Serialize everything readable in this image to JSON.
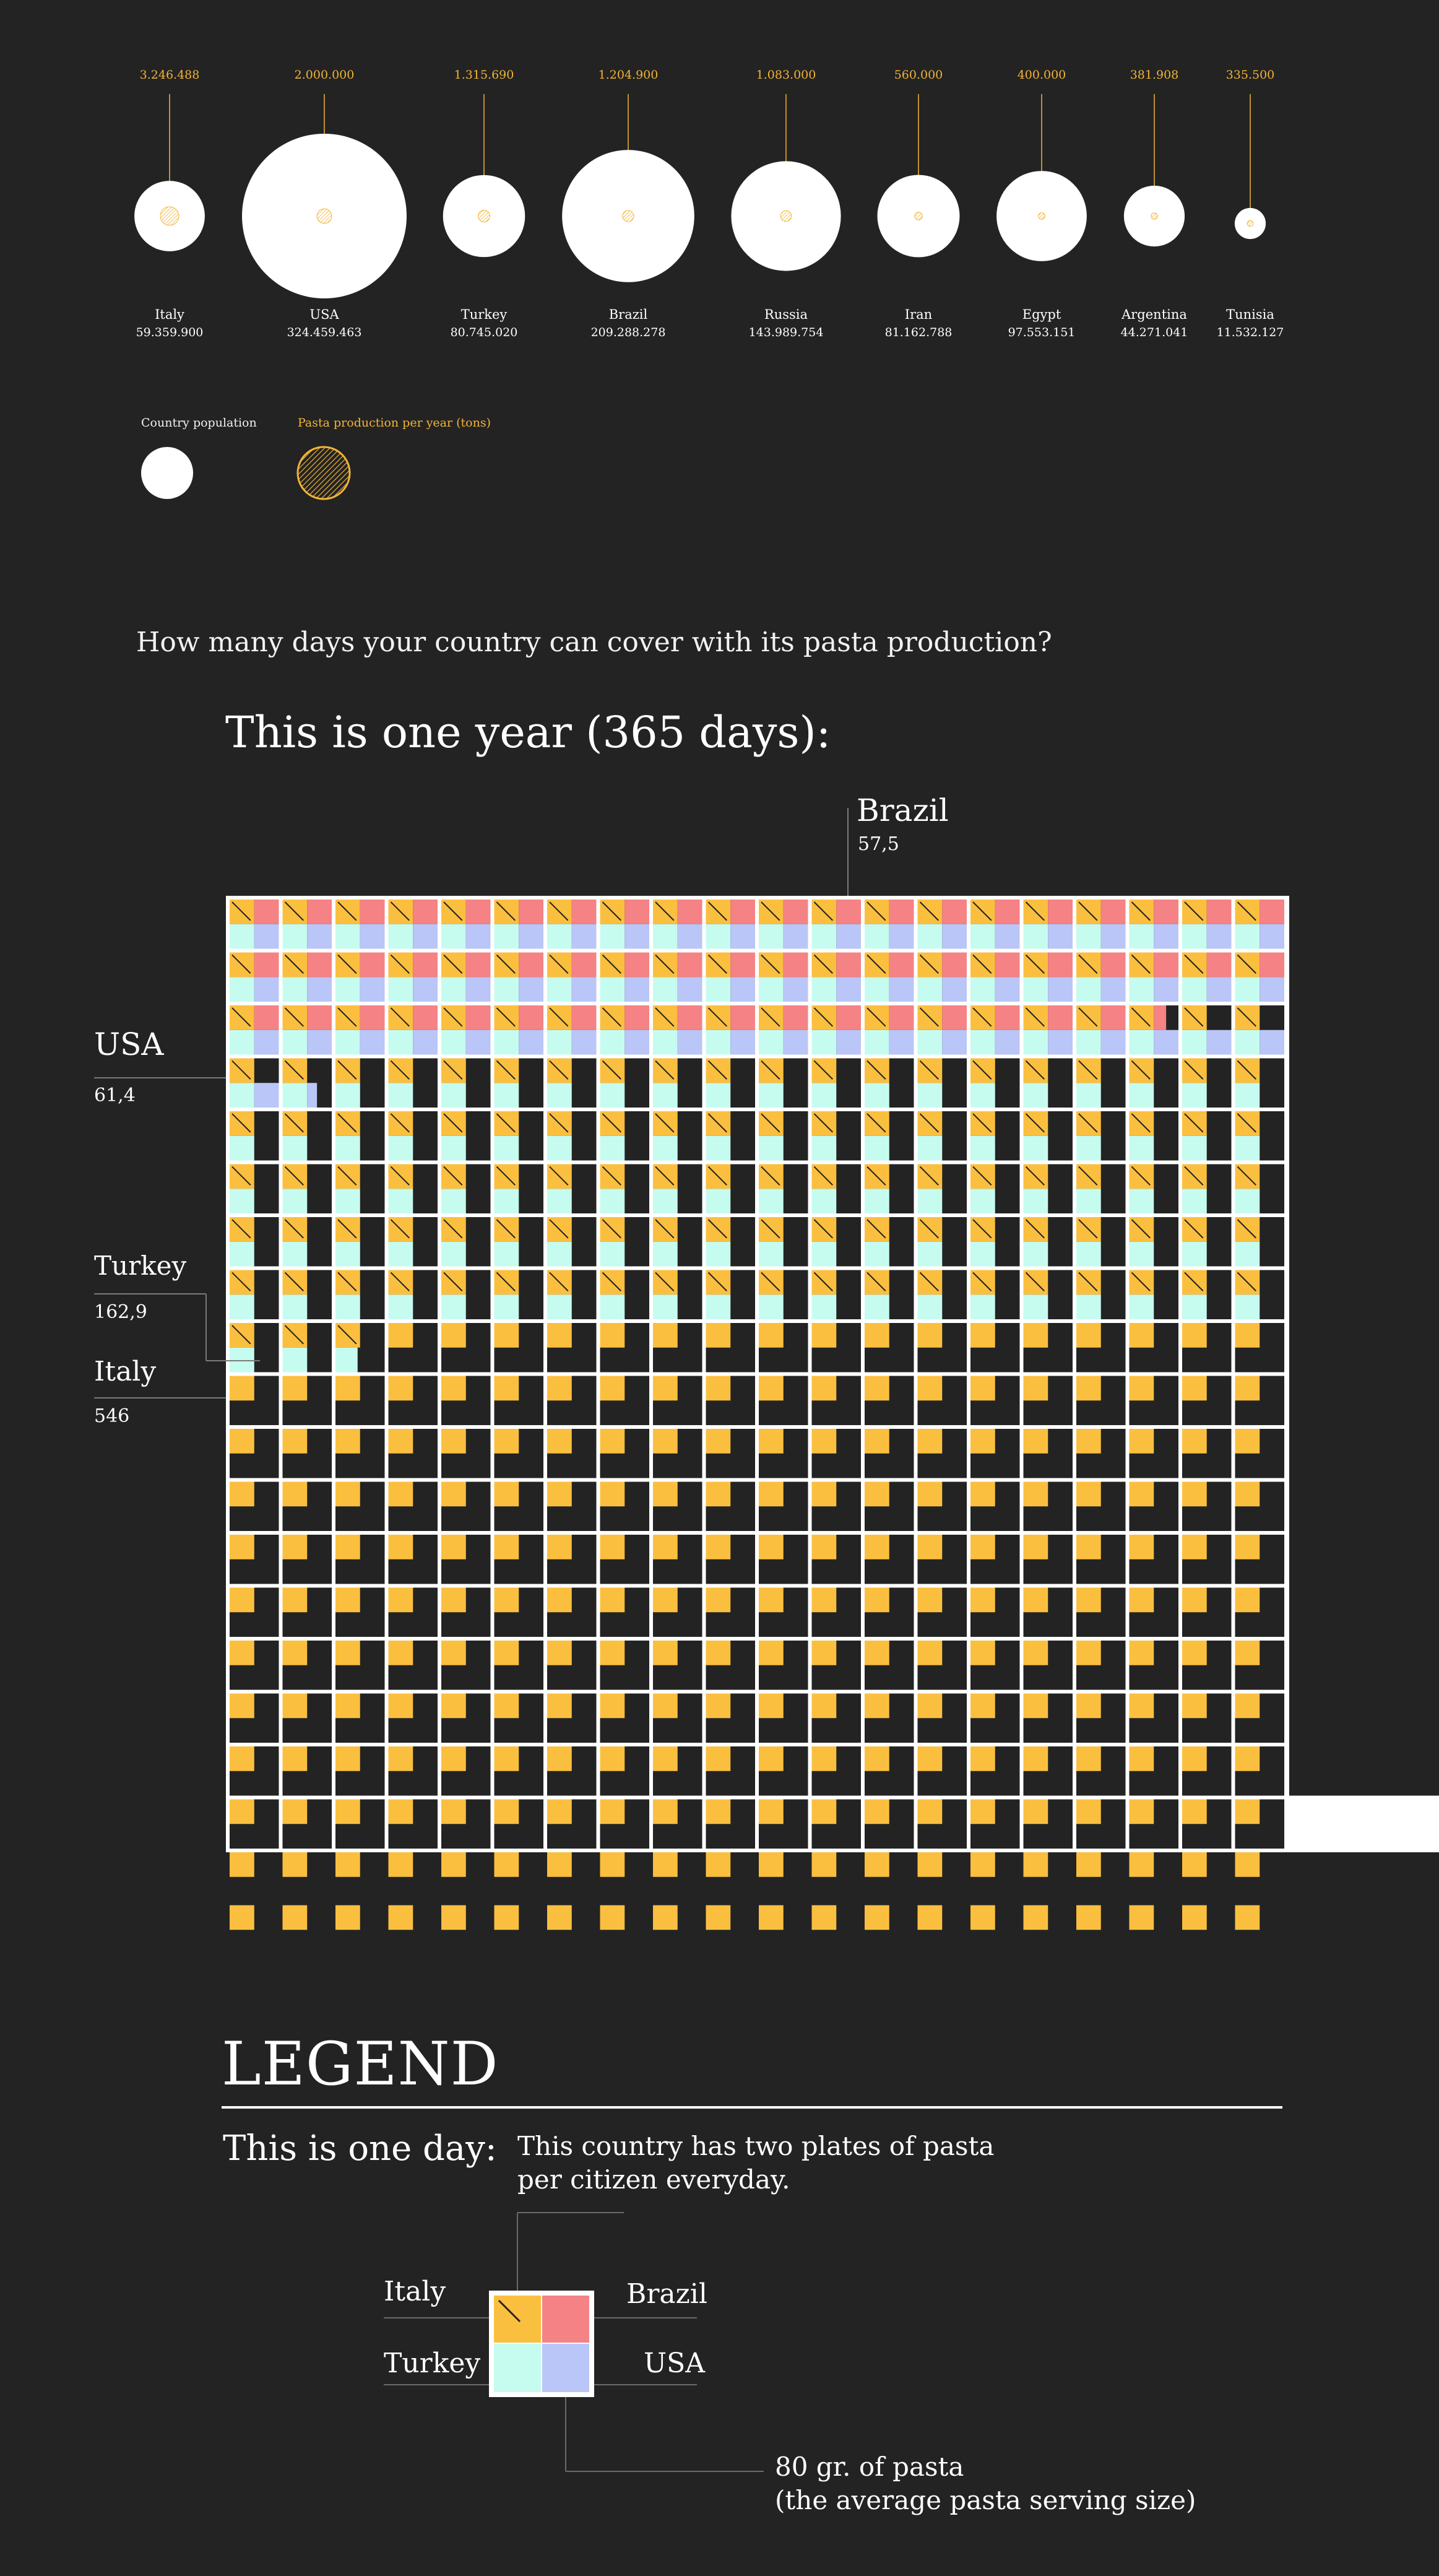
{
  "bubbles": [
    {
      "name": "Italy",
      "population_label": "59.359.900",
      "production_label": "3.246.488",
      "population": 59359900,
      "production": 3246488
    },
    {
      "name": "USA",
      "population_label": "324.459.463",
      "production_label": "2.000.000",
      "population": 324459463,
      "production": 2000000
    },
    {
      "name": "Turkey",
      "population_label": "80.745.020",
      "production_label": "1.315.690",
      "population": 80745020,
      "production": 1315690
    },
    {
      "name": "Brazil",
      "population_label": "209.288.278",
      "production_label": "1.204.900",
      "population": 209288278,
      "production": 1204900
    },
    {
      "name": "Russia",
      "population_label": "143.989.754",
      "production_label": "1.083.000",
      "population": 143989754,
      "production": 1083000
    },
    {
      "name": "Iran",
      "population_label": "81.162.788",
      "production_label": "560.000",
      "population": 81162788,
      "production": 560000
    },
    {
      "name": "Egypt",
      "population_label": "97.553.151",
      "production_label": "400.000",
      "population": 97553151,
      "production": 400000
    },
    {
      "name": "Argentina",
      "population_label": "44.271.041",
      "production_label": "381.908",
      "population": 44271041,
      "production": 381908
    },
    {
      "name": "Tunisia",
      "population_label": "11.532.127",
      "production_label": "335.500",
      "population": 11532127,
      "production": 335500
    }
  ],
  "key": {
    "population_label": "Country population",
    "production_label": "Pasta production per year (tons)"
  },
  "question": "How many days your country can cover with its pasta production?",
  "year_title": "This is one year (365 days):",
  "callouts": {
    "brazil": {
      "name": "Brazil",
      "value": "57,5"
    },
    "usa": {
      "name": "USA",
      "value": "61,4"
    },
    "turkey": {
      "name": "Turkey",
      "value": "162,9"
    },
    "italy": {
      "name": "Italy",
      "value": "546"
    }
  },
  "legend": {
    "title": "LEGEND",
    "one_day": "This is one day:",
    "explain_line1": "This country has two plates of pasta",
    "explain_line2": "per citizen everyday.",
    "italy": "Italy",
    "brazil": "Brazil",
    "turkey": "Turkey",
    "usa": "USA",
    "serving_line1": "80 gr. of pasta",
    "serving_line2": "(the average pasta serving size)"
  },
  "colors": {
    "background": "#232323",
    "italy": "#fbbf3f",
    "brazil": "#f58284",
    "turkey": "#c6fcf0",
    "usa": "#bac6f7",
    "production_accent": "#f3b436"
  },
  "chart_data": [
    {
      "type": "scatter",
      "title": "",
      "xlabel": "",
      "ylabel": "",
      "note": "Bubble area = country population; inner bubble = pasta production per year (tons)",
      "categories": [
        "Italy",
        "USA",
        "Turkey",
        "Brazil",
        "Russia",
        "Iran",
        "Egypt",
        "Argentina",
        "Tunisia"
      ],
      "series": [
        {
          "name": "Country population",
          "values": [
            59359900,
            324459463,
            80745020,
            209288278,
            143989754,
            81162788,
            97553151,
            44271041,
            11532127
          ]
        },
        {
          "name": "Pasta production per year (tons)",
          "values": [
            3246488,
            2000000,
            1315690,
            1204900,
            1083000,
            560000,
            400000,
            381908,
            335500
          ]
        }
      ]
    },
    {
      "type": "table",
      "title": "This is one year (365 days):",
      "categories": [
        "Italy",
        "Turkey",
        "USA",
        "Brazil"
      ],
      "series": [
        {
          "name": "Days covered (2 plates per citizen per day)",
          "values": [
            546,
            162.9,
            61.4,
            57.5
          ]
        }
      ],
      "units_per_cell": "1 day",
      "total_cells_shown": 546
    }
  ]
}
